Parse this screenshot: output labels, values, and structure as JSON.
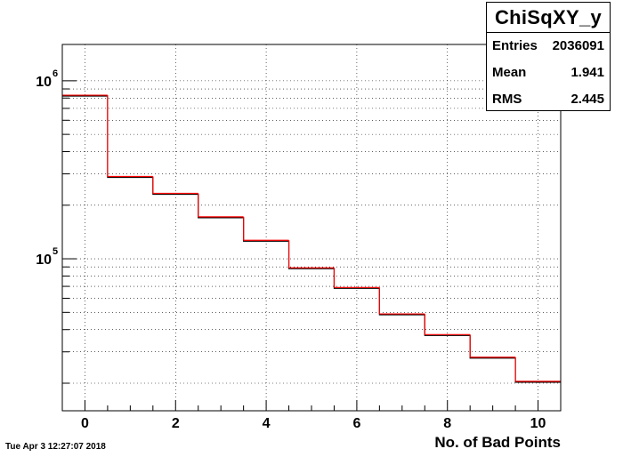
{
  "chart_data": {
    "type": "histogram",
    "title": "",
    "xlabel": "No. of Bad Points",
    "ylabel": "",
    "y_scale": "log",
    "x_range": [
      -0.5,
      10.5
    ],
    "y_range": [
      14000,
      1600000
    ],
    "grid": true,
    "x_ticks": [
      0,
      2,
      4,
      6,
      8,
      10
    ],
    "y_tick_labels": [
      {
        "base": "10",
        "exp": "5",
        "value": 100000
      },
      {
        "base": "10",
        "exp": "6",
        "value": 1000000
      }
    ],
    "bins": [
      {
        "x": 0,
        "value": 830000
      },
      {
        "x": 1,
        "value": 290000
      },
      {
        "x": 2,
        "value": 233000
      },
      {
        "x": 3,
        "value": 172000
      },
      {
        "x": 4,
        "value": 127000
      },
      {
        "x": 5,
        "value": 89000
      },
      {
        "x": 6,
        "value": 69000
      },
      {
        "x": 7,
        "value": 49000
      },
      {
        "x": 8,
        "value": 37500
      },
      {
        "x": 9,
        "value": 28000
      },
      {
        "x": 10,
        "value": 20500
      }
    ],
    "line_color": "#ff0000",
    "outline_color": "#000000"
  },
  "stats": {
    "title": "ChiSqXY_y",
    "rows": [
      {
        "label": "Entries",
        "value": "2036091"
      },
      {
        "label": "Mean",
        "value": "1.941"
      },
      {
        "label": "RMS",
        "value": "2.445"
      }
    ]
  },
  "timestamp": "Tue Apr  3 12:27:07 2018"
}
